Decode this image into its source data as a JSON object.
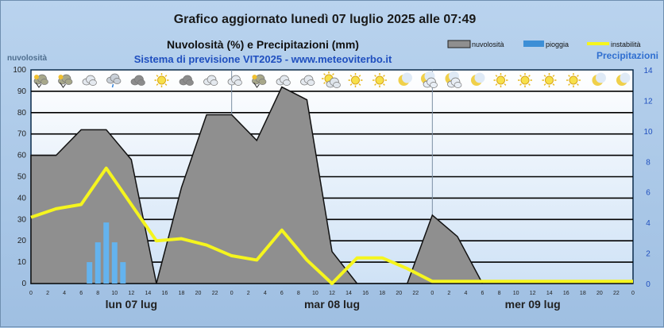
{
  "header": {
    "title": "Grafico aggiornato lunedì 07 luglio 2025 alle 07:49",
    "subtitle": "Nuvolosità (%) e Precipitazioni (mm)",
    "source": "Sistema di previsione VIT2025 - www.meteoviterbo.it"
  },
  "legend": {
    "position": "top-right",
    "items": [
      {
        "label": "nuvolosità",
        "color": "#8f8f8f"
      },
      {
        "label": "pioggia",
        "color": "#3d8fd6"
      },
      {
        "label": "instabilità",
        "color": "#f5f51e"
      }
    ]
  },
  "colors": {
    "rain": "#64b3ee",
    "cloud": "#8f8f8f",
    "instability": "#f5f51e"
  },
  "chart_data": {
    "type": "area",
    "title": "Nuvolosità (%) e Precipitazioni (mm)",
    "ylabel_left": "nuvolosità",
    "ylabel_right": "Precipitazioni",
    "ylim_left": [
      0,
      100
    ],
    "ylim_right": [
      0,
      14
    ],
    "yticks_left": [
      "0",
      "10",
      "20",
      "30",
      "40",
      "50",
      "60",
      "70",
      "80",
      "90",
      "100"
    ],
    "yticks_right": [
      "0",
      "2",
      "4",
      "6",
      "8",
      "10",
      "12",
      "14"
    ],
    "x_hours": [
      0,
      2,
      4,
      6,
      8,
      10,
      12,
      14,
      16,
      18,
      20,
      22,
      24,
      26,
      28,
      30,
      32,
      34,
      36,
      38,
      40,
      42,
      44,
      46,
      48,
      50,
      52,
      54,
      56,
      58,
      60,
      62,
      64,
      66,
      68,
      70,
      72
    ],
    "x_tick_labels": [
      "0",
      "2",
      "4",
      "6",
      "8",
      "10",
      "12",
      "14",
      "16",
      "18",
      "20",
      "22",
      "0",
      "2",
      "4",
      "6",
      "8",
      "10",
      "12",
      "14",
      "16",
      "18",
      "20",
      "22",
      "0",
      "2",
      "4",
      "6",
      "8",
      "10",
      "12",
      "14",
      "16",
      "18",
      "20",
      "22",
      "0"
    ],
    "day_labels": [
      {
        "label": "lun 07 lug",
        "hour": 12
      },
      {
        "label": "mar 08 lug",
        "hour": 36
      },
      {
        "label": "mer 09 lug",
        "hour": 60
      }
    ],
    "grid": true,
    "series": [
      {
        "name": "nuvolosità",
        "axis": "left",
        "style": "area",
        "points": [
          [
            0,
            60
          ],
          [
            3,
            60
          ],
          [
            6,
            72
          ],
          [
            9,
            72
          ],
          [
            12,
            58
          ],
          [
            15,
            0
          ],
          [
            18,
            45
          ],
          [
            21,
            79
          ],
          [
            24,
            79
          ],
          [
            27,
            67
          ],
          [
            30,
            92
          ],
          [
            33,
            86
          ],
          [
            36,
            15
          ],
          [
            39,
            0
          ],
          [
            45,
            0
          ],
          [
            48,
            32
          ],
          [
            51,
            22
          ],
          [
            54,
            0
          ],
          [
            72,
            0
          ]
        ]
      },
      {
        "name": "pioggia",
        "axis": "right",
        "style": "bar",
        "bars": [
          [
            7,
            1.4
          ],
          [
            8,
            2.7
          ],
          [
            9,
            4.0
          ],
          [
            10,
            2.7
          ],
          [
            11,
            1.4
          ]
        ]
      },
      {
        "name": "instabilità",
        "axis": "left",
        "style": "line",
        "points": [
          [
            0,
            31
          ],
          [
            3,
            35
          ],
          [
            6,
            37
          ],
          [
            9,
            54
          ],
          [
            12,
            37
          ],
          [
            15,
            20
          ],
          [
            18,
            21
          ],
          [
            21,
            18
          ],
          [
            24,
            13
          ],
          [
            27,
            11
          ],
          [
            30,
            25
          ],
          [
            33,
            11
          ],
          [
            36,
            0
          ],
          [
            39,
            12
          ],
          [
            42,
            12
          ],
          [
            45,
            7
          ],
          [
            48,
            1
          ],
          [
            51,
            1
          ],
          [
            54,
            1
          ],
          [
            72,
            1
          ]
        ]
      }
    ]
  },
  "icons": [
    "thunderstorm-icon",
    "thunderstorm-icon",
    "cloud-icon",
    "rain-icon",
    "overcast-icon",
    "sun-icon",
    "overcast-icon",
    "cloud-icon",
    "cloud-icon",
    "thunderstorm-icon",
    "cloud-icon",
    "cloud-icon",
    "sun-cloud-icon",
    "sun-icon",
    "sun-icon",
    "moon-icon",
    "moon-cloud-icon",
    "moon-cloud-icon",
    "moon-icon",
    "sun-icon",
    "sun-icon",
    "sun-icon",
    "sun-icon",
    "moon-icon",
    "moon-icon"
  ]
}
